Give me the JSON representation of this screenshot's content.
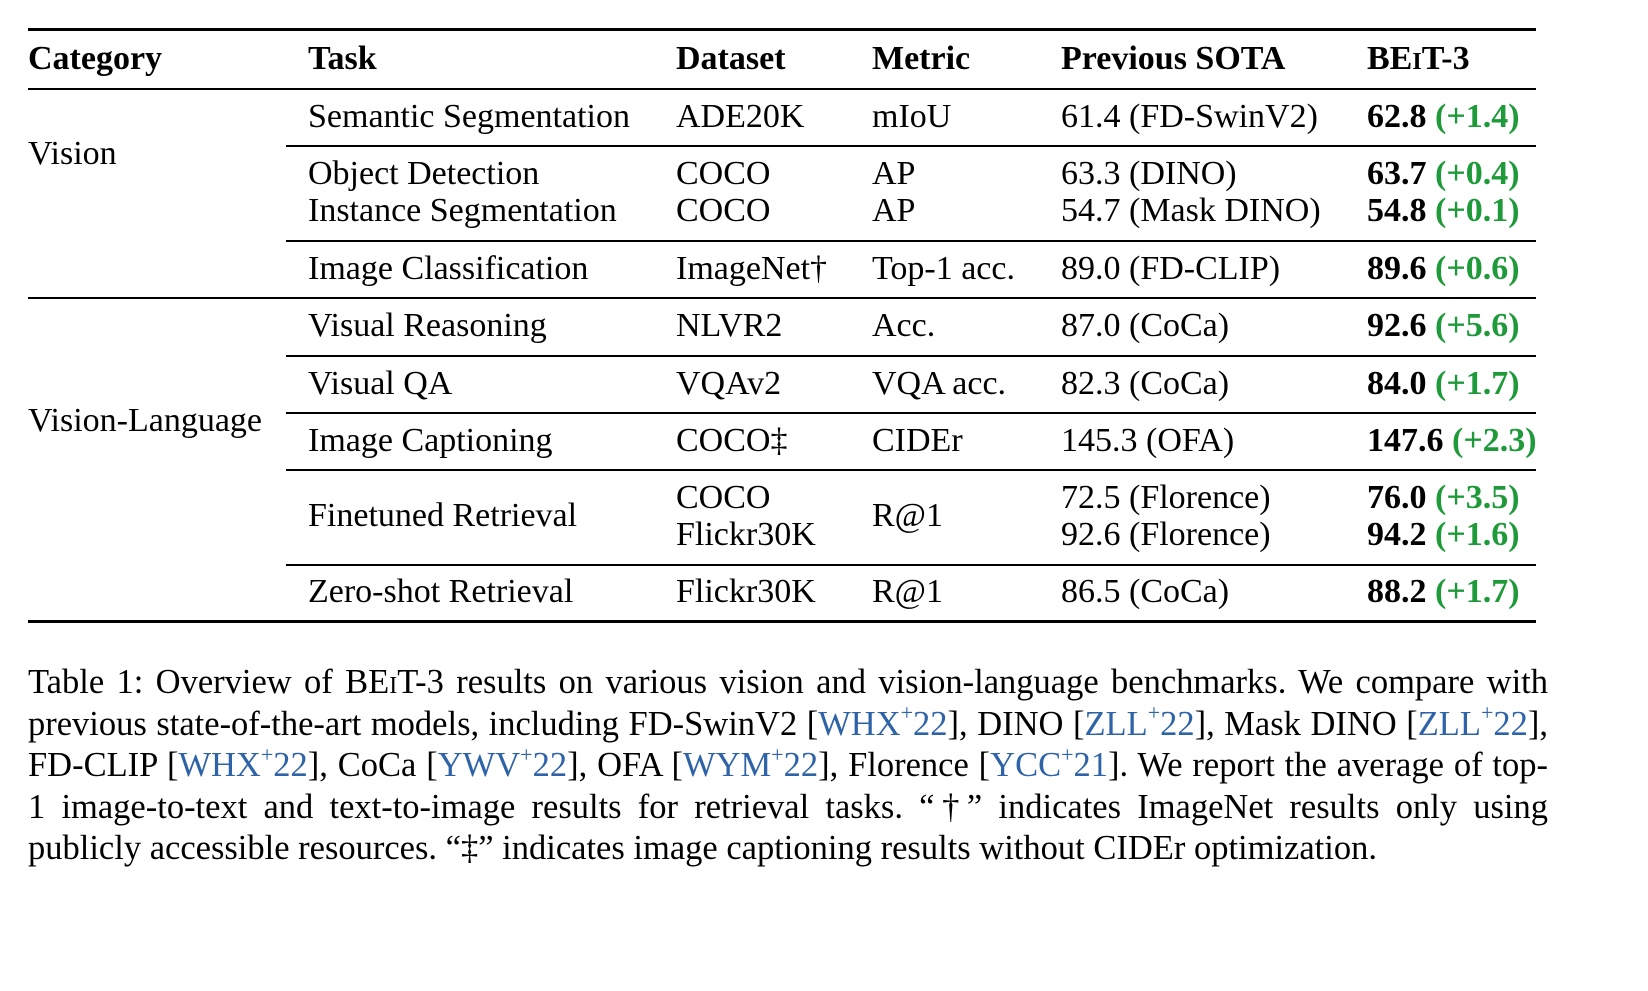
{
  "table": {
    "headers": {
      "category": "Category",
      "task": "Task",
      "dataset": "Dataset",
      "metric": "Metric",
      "previous": "Previous SOTA",
      "model_prefix": "BE",
      "model_sc": "i",
      "model_suffix": "T-3"
    },
    "categories": {
      "vision": "Vision",
      "vision_language": "Vision-Language"
    },
    "rows": [
      {
        "task": "Semantic Segmentation",
        "dataset": "ADE20K",
        "metric": "mIoU",
        "previous": "61.4 (FD-SwinV2)",
        "score": "62.8",
        "delta": "(+1.4)"
      },
      {
        "task": "Object Detection",
        "dataset": "COCO",
        "metric": "AP",
        "previous": "63.3 (DINO)",
        "score": "63.7",
        "delta": "(+0.4)"
      },
      {
        "task": "Instance Segmentation",
        "dataset": "COCO",
        "metric": "AP",
        "previous": "54.7 (Mask DINO)",
        "score": "54.8",
        "delta": "(+0.1)"
      },
      {
        "task": "Image Classification",
        "dataset": "ImageNet†",
        "metric": "Top-1 acc.",
        "previous": "89.0 (FD-CLIP)",
        "score": "89.6",
        "delta": "(+0.6)"
      },
      {
        "task": "Visual Reasoning",
        "dataset": "NLVR2",
        "metric": "Acc.",
        "previous": "87.0 (CoCa)",
        "score": "92.6",
        "delta": "(+5.6)"
      },
      {
        "task": "Visual QA",
        "dataset": "VQAv2",
        "metric": "VQA acc.",
        "previous": "82.3 (CoCa)",
        "score": "84.0",
        "delta": "(+1.7)"
      },
      {
        "task": "Image Captioning",
        "dataset": "COCO‡",
        "metric": "CIDEr",
        "previous": "145.3 (OFA)",
        "score": "147.6",
        "delta": "(+2.3)"
      },
      {
        "task": "Finetuned Retrieval",
        "dataset": "COCO",
        "dataset2": "Flickr30K",
        "metric": "R@1",
        "previous": "72.5 (Florence)",
        "previous2": "92.6 (Florence)",
        "score": "76.0",
        "delta": "(+3.5)",
        "score2": "94.2",
        "delta2": "(+1.6)"
      },
      {
        "task": "Zero-shot Retrieval",
        "dataset": "Flickr30K",
        "metric": "R@1",
        "previous": "86.5 (CoCa)",
        "score": "88.2",
        "delta": "(+1.7)"
      }
    ]
  },
  "caption": {
    "s1": "Table 1: Overview of BE",
    "s1_sc": "i",
    "s2": "T-3 results on various vision and vision-language benchmarks. We compare with previous state-of-the-art models, including FD-SwinV2 [",
    "r1": "WHX",
    "r1b": "22",
    "s3": "], DINO [",
    "r2": "ZLL",
    "r2b": "22",
    "s4": "], Mask DINO [",
    "r3": "ZLL",
    "r3b": "22",
    "s5": "], FD-CLIP [",
    "r4": "WHX",
    "r4b": "22",
    "s6": "], CoCa [",
    "r5": "YWV",
    "r5b": "22",
    "s7": "], OFA [",
    "r6": "WYM",
    "r6b": "22",
    "s8": "], Florence [",
    "r7": "YCC",
    "r7b": "21",
    "s9": "]. We report the average of top-1 image-to-text and text-to-image results for retrieval tasks. “†” indicates ImageNet results only using publicly accessible resources. “‡” indicates image captioning results without CIDEr optimization.",
    "plus": "+"
  },
  "colors": {
    "delta": "#1f9a3a",
    "citation": "#2f63a8"
  }
}
